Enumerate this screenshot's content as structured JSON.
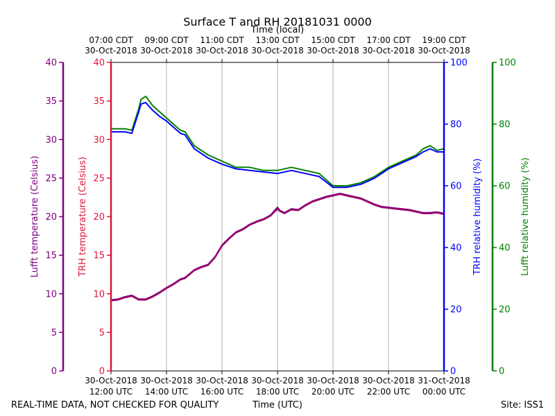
{
  "title": "Surface T and RH 20181031 0000",
  "footer": {
    "left_note": "REAL-TIME DATA, NOT CHECKED FOR QUALITY",
    "x_label": "Time (UTC)",
    "site": "Site: ISS1"
  },
  "colors": {
    "lufft_t": "#800080",
    "trh_t": "#dc143c",
    "trh_rh": "#0000ff",
    "lufft_rh": "#008000",
    "grid": "#b0b0b0",
    "temp_trace": "#9b0a67"
  },
  "chart_data": {
    "type": "line",
    "top_axis_label": "Time (local)",
    "top_ticks": [
      {
        "time": "07:00 CDT",
        "date": "30-Oct-2018"
      },
      {
        "time": "09:00 CDT",
        "date": "30-Oct-2018"
      },
      {
        "time": "11:00 CDT",
        "date": "30-Oct-2018"
      },
      {
        "time": "13:00 CDT",
        "date": "30-Oct-2018"
      },
      {
        "time": "15:00 CDT",
        "date": "30-Oct-2018"
      },
      {
        "time": "17:00 CDT",
        "date": "30-Oct-2018"
      },
      {
        "time": "19:00 CDT",
        "date": "30-Oct-2018"
      }
    ],
    "bottom_ticks": [
      {
        "date": "30-Oct-2018",
        "time": "12:00 UTC"
      },
      {
        "date": "30-Oct-2018",
        "time": "14:00 UTC"
      },
      {
        "date": "30-Oct-2018",
        "time": "16:00 UTC"
      },
      {
        "date": "30-Oct-2018",
        "time": "18:00 UTC"
      },
      {
        "date": "30-Oct-2018",
        "time": "20:00 UTC"
      },
      {
        "date": "30-Oct-2018",
        "time": "22:00 UTC"
      },
      {
        "date": "31-Oct-2018",
        "time": "00:00 UTC"
      }
    ],
    "x_range_utc": [
      "2018-10-30 12:00",
      "2018-10-31 00:00"
    ],
    "axes": {
      "lufft_temperature": {
        "label": "Lufft temperature (Celsius)",
        "range": [
          0,
          40
        ],
        "ticks": [
          "0",
          "5",
          "10",
          "15",
          "20",
          "25",
          "30",
          "35",
          "40"
        ]
      },
      "trh_temperature": {
        "label": "TRH temperature (Celsius)",
        "range": [
          0,
          40
        ],
        "ticks": [
          "0",
          "5",
          "10",
          "15",
          "20",
          "25",
          "30",
          "35",
          "40"
        ]
      },
      "trh_rh": {
        "label": "TRH relative humidity (%)",
        "range": [
          0,
          100
        ],
        "ticks": [
          "0",
          "20",
          "40",
          "60",
          "80",
          "100"
        ]
      },
      "lufft_rh": {
        "label": "Lufft relative humidity (%)",
        "range": [
          0,
          100
        ],
        "ticks": [
          "0",
          "20",
          "40",
          "60",
          "80",
          "100"
        ]
      }
    },
    "grid": "vertical",
    "series": [
      {
        "name": "Lufft relative humidity",
        "axis": "lufft_rh",
        "x": [
          "12:00",
          "12:30",
          "12:45",
          "13:00",
          "13:05",
          "13:15",
          "13:30",
          "13:45",
          "14:00",
          "14:15",
          "14:30",
          "14:40",
          "15:00",
          "15:30",
          "16:00",
          "16:30",
          "17:00",
          "17:30",
          "18:00",
          "18:30",
          "19:00",
          "19:30",
          "20:00",
          "20:30",
          "21:00",
          "21:30",
          "22:00",
          "22:30",
          "23:00",
          "23:15",
          "23:30",
          "23:45",
          "24:00"
        ],
        "y": [
          78.5,
          78.5,
          78,
          85,
          88,
          89,
          86,
          84,
          82,
          80,
          78,
          77.5,
          73,
          70,
          68,
          66,
          66,
          65,
          65,
          66,
          65,
          64,
          60,
          60,
          61,
          63,
          66,
          68,
          70,
          72,
          73,
          71.5,
          72
        ]
      },
      {
        "name": "TRH relative humidity",
        "axis": "trh_rh",
        "x": [
          "12:00",
          "12:30",
          "12:45",
          "13:00",
          "13:05",
          "13:15",
          "13:30",
          "13:45",
          "14:00",
          "14:15",
          "14:30",
          "14:40",
          "15:00",
          "15:30",
          "16:00",
          "16:30",
          "17:00",
          "17:30",
          "18:00",
          "18:30",
          "19:00",
          "19:30",
          "20:00",
          "20:30",
          "21:00",
          "21:30",
          "22:00",
          "22:30",
          "23:00",
          "23:15",
          "23:30",
          "23:45",
          "24:00"
        ],
        "y": [
          77.5,
          77.5,
          77,
          84,
          86.5,
          87,
          84.5,
          82.5,
          81,
          79,
          77,
          76.5,
          72,
          69,
          67,
          65.5,
          65,
          64.5,
          64,
          65,
          64,
          63,
          59.5,
          59.5,
          60.5,
          62.5,
          65.5,
          67.5,
          69.5,
          71,
          72,
          71,
          71
        ]
      },
      {
        "name": "Lufft temperature",
        "axis": "lufft_temperature",
        "x": [
          "12:00",
          "12:15",
          "12:30",
          "12:45",
          "13:00",
          "13:15",
          "13:30",
          "13:45",
          "14:00",
          "14:15",
          "14:30",
          "14:40",
          "15:00",
          "15:15",
          "15:30",
          "15:45",
          "16:00",
          "16:15",
          "16:30",
          "16:45",
          "17:00",
          "17:15",
          "17:30",
          "17:45",
          "18:00",
          "18:05",
          "18:15",
          "18:30",
          "18:45",
          "19:00",
          "19:15",
          "19:30",
          "19:45",
          "20:00",
          "20:15",
          "20:30",
          "20:45",
          "21:00",
          "21:15",
          "21:30",
          "21:45",
          "22:00",
          "22:15",
          "22:30",
          "22:45",
          "23:00",
          "23:15",
          "23:30",
          "23:45",
          "24:00"
        ],
        "y": [
          9.2,
          9.3,
          9.6,
          9.8,
          9.3,
          9.3,
          9.7,
          10.2,
          10.8,
          11.3,
          11.9,
          12.1,
          13.1,
          13.5,
          13.8,
          14.8,
          16.3,
          17.2,
          18.0,
          18.4,
          19.0,
          19.4,
          19.7,
          20.2,
          21.2,
          20.8,
          20.5,
          21.0,
          20.9,
          21.5,
          22.0,
          22.3,
          22.6,
          22.8,
          23.0,
          22.8,
          22.6,
          22.4,
          22.0,
          21.6,
          21.3,
          21.2,
          21.1,
          21.0,
          20.9,
          20.7,
          20.5,
          20.5,
          20.6,
          20.4
        ]
      },
      {
        "name": "TRH temperature",
        "axis": "trh_temperature",
        "x": [
          "12:00",
          "12:15",
          "12:30",
          "12:45",
          "13:00",
          "13:15",
          "13:30",
          "13:45",
          "14:00",
          "14:15",
          "14:30",
          "14:40",
          "15:00",
          "15:15",
          "15:30",
          "15:45",
          "16:00",
          "16:15",
          "16:30",
          "16:45",
          "17:00",
          "17:15",
          "17:30",
          "17:45",
          "18:00",
          "18:05",
          "18:15",
          "18:30",
          "18:45",
          "19:00",
          "19:15",
          "19:30",
          "19:45",
          "20:00",
          "20:15",
          "20:30",
          "20:45",
          "21:00",
          "21:15",
          "21:30",
          "21:45",
          "22:00",
          "22:15",
          "22:30",
          "22:45",
          "23:00",
          "23:15",
          "23:30",
          "23:45",
          "24:00"
        ],
        "y": [
          9.1,
          9.2,
          9.5,
          9.7,
          9.2,
          9.2,
          9.6,
          10.1,
          10.7,
          11.2,
          11.8,
          12.0,
          13.0,
          13.4,
          13.7,
          14.7,
          16.2,
          17.1,
          17.9,
          18.3,
          18.9,
          19.3,
          19.6,
          20.1,
          21.0,
          20.7,
          20.4,
          20.9,
          20.8,
          21.4,
          21.9,
          22.2,
          22.5,
          22.7,
          22.9,
          22.7,
          22.5,
          22.3,
          21.9,
          21.5,
          21.2,
          21.1,
          21.0,
          20.9,
          20.8,
          20.6,
          20.4,
          20.4,
          20.5,
          20.3
        ]
      }
    ]
  }
}
